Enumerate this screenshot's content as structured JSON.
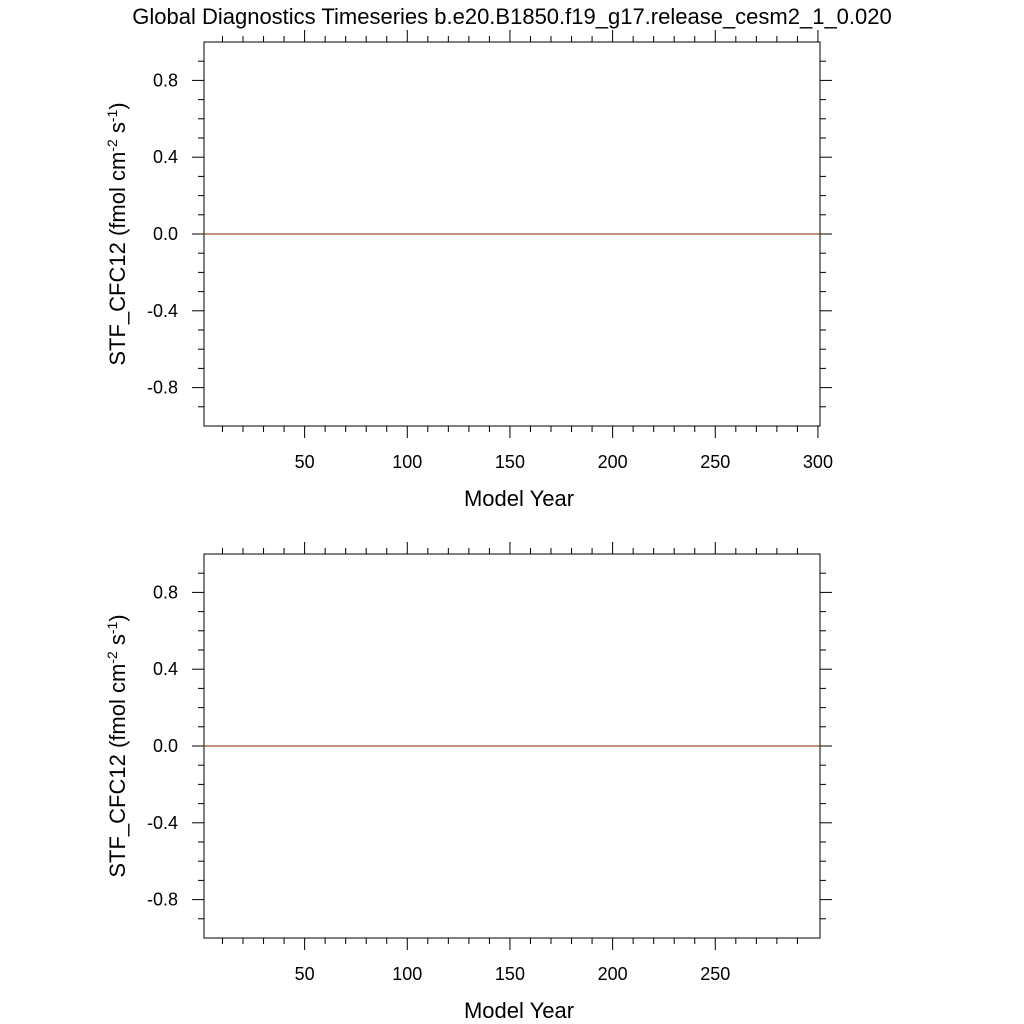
{
  "title": "Global Diagnostics Timeseries b.e20.B1850.f19_g17.release_cesm2_1_0.020",
  "colors": {
    "series_line": "#a0522d",
    "axis": "#000000",
    "background": "#ffffff"
  },
  "chart_data": [
    {
      "type": "line",
      "xlabel": "Model Year",
      "ylabel": {
        "text": "STF_CFC12 (fmol cm",
        "exp1": "-2",
        "mid": " s",
        "exp2": "-1",
        "close": ")"
      },
      "xlim": [
        1,
        301
      ],
      "ylim": [
        -1,
        1
      ],
      "xticks": [
        50,
        100,
        150,
        200,
        250,
        300
      ],
      "xtick_labels": [
        "50",
        "100",
        "150",
        "200",
        "250",
        "300"
      ],
      "yticks": [
        -0.8,
        -0.4,
        0.0,
        0.4,
        0.8
      ],
      "ytick_labels": [
        "-0.8",
        "-0.4",
        "0.0",
        "0.4",
        "0.8"
      ],
      "grid": false,
      "series": [
        {
          "x": [
            1,
            301
          ],
          "y": [
            0,
            0
          ]
        }
      ]
    },
    {
      "type": "line",
      "xlabel": "Model Year",
      "ylabel": {
        "text": "STF_CFC12 (fmol cm",
        "exp1": "-2",
        "mid": " s",
        "exp2": "-1",
        "close": ")"
      },
      "xlim": [
        1,
        301
      ],
      "ylim": [
        -1,
        1
      ],
      "xticks": [
        50,
        100,
        150,
        200,
        250
      ],
      "xtick_labels": [
        "50",
        "100",
        "150",
        "200",
        "250"
      ],
      "yticks": [
        -0.8,
        -0.4,
        0.0,
        0.4,
        0.8
      ],
      "ytick_labels": [
        "-0.8",
        "-0.4",
        "0.0",
        "0.4",
        "0.8"
      ],
      "grid": false,
      "series": [
        {
          "x": [
            1,
            301
          ],
          "y": [
            0,
            0
          ]
        }
      ]
    }
  ]
}
